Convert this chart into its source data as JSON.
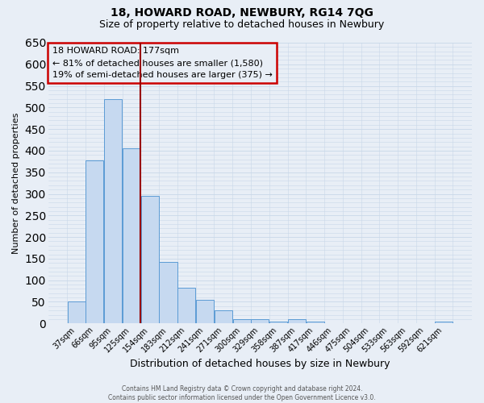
{
  "title": "18, HOWARD ROAD, NEWBURY, RG14 7QG",
  "subtitle": "Size of property relative to detached houses in Newbury",
  "xlabel": "Distribution of detached houses by size in Newbury",
  "ylabel": "Number of detached properties",
  "bar_labels": [
    "37sqm",
    "66sqm",
    "95sqm",
    "125sqm",
    "154sqm",
    "183sqm",
    "212sqm",
    "241sqm",
    "271sqm",
    "300sqm",
    "329sqm",
    "358sqm",
    "387sqm",
    "417sqm",
    "446sqm",
    "475sqm",
    "504sqm",
    "533sqm",
    "563sqm",
    "592sqm",
    "621sqm"
  ],
  "bar_values": [
    50,
    378,
    520,
    405,
    295,
    143,
    82,
    55,
    30,
    10,
    10,
    5,
    10,
    5,
    0,
    0,
    0,
    0,
    0,
    0,
    5
  ],
  "bar_color": "#c6d9f0",
  "bar_edgecolor": "#5b9bd5",
  "vline_x": 3.5,
  "vline_color": "#990000",
  "annotation_title": "18 HOWARD ROAD: 177sqm",
  "annotation_line1": "← 81% of detached houses are smaller (1,580)",
  "annotation_line2": "19% of semi-detached houses are larger (375) →",
  "annotation_box_edgecolor": "#cc0000",
  "ylim": [
    0,
    650
  ],
  "yticks": [
    0,
    50,
    100,
    150,
    200,
    250,
    300,
    350,
    400,
    450,
    500,
    550,
    600,
    650
  ],
  "grid_color": "#c8d8e8",
  "background_color": "#e8eef6",
  "footer_line1": "Contains HM Land Registry data © Crown copyright and database right 2024.",
  "footer_line2": "Contains public sector information licensed under the Open Government Licence v3.0."
}
